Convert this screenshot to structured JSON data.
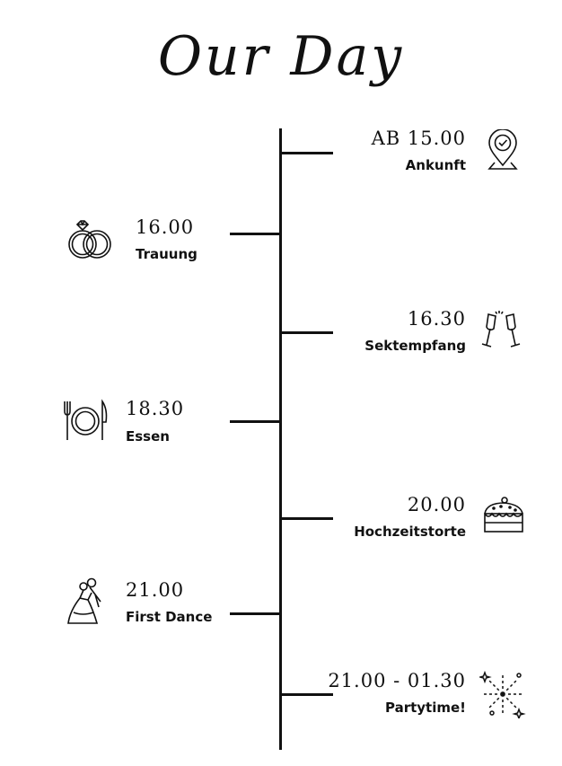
{
  "title": "Our Day",
  "events": [
    {
      "time": "AB 15.00",
      "label": "Ankunft",
      "side": "right",
      "icon": "location-pin-icon"
    },
    {
      "time": "16.00",
      "label": "Trauung",
      "side": "left",
      "icon": "wedding-rings-icon"
    },
    {
      "time": "16.30",
      "label": "Sektempfang",
      "side": "right",
      "icon": "champagne-glasses-icon"
    },
    {
      "time": "18.30",
      "label": "Essen",
      "side": "left",
      "icon": "plate-cutlery-icon"
    },
    {
      "time": "20.00",
      "label": "Hochzeitstorte",
      "side": "right",
      "icon": "cake-slice-icon"
    },
    {
      "time": "21.00",
      "label": "First Dance",
      "side": "left",
      "icon": "dancing-couple-icon"
    },
    {
      "time": "21.00 - 01.30",
      "label": "Partytime!",
      "side": "right",
      "icon": "fireworks-icon"
    }
  ]
}
